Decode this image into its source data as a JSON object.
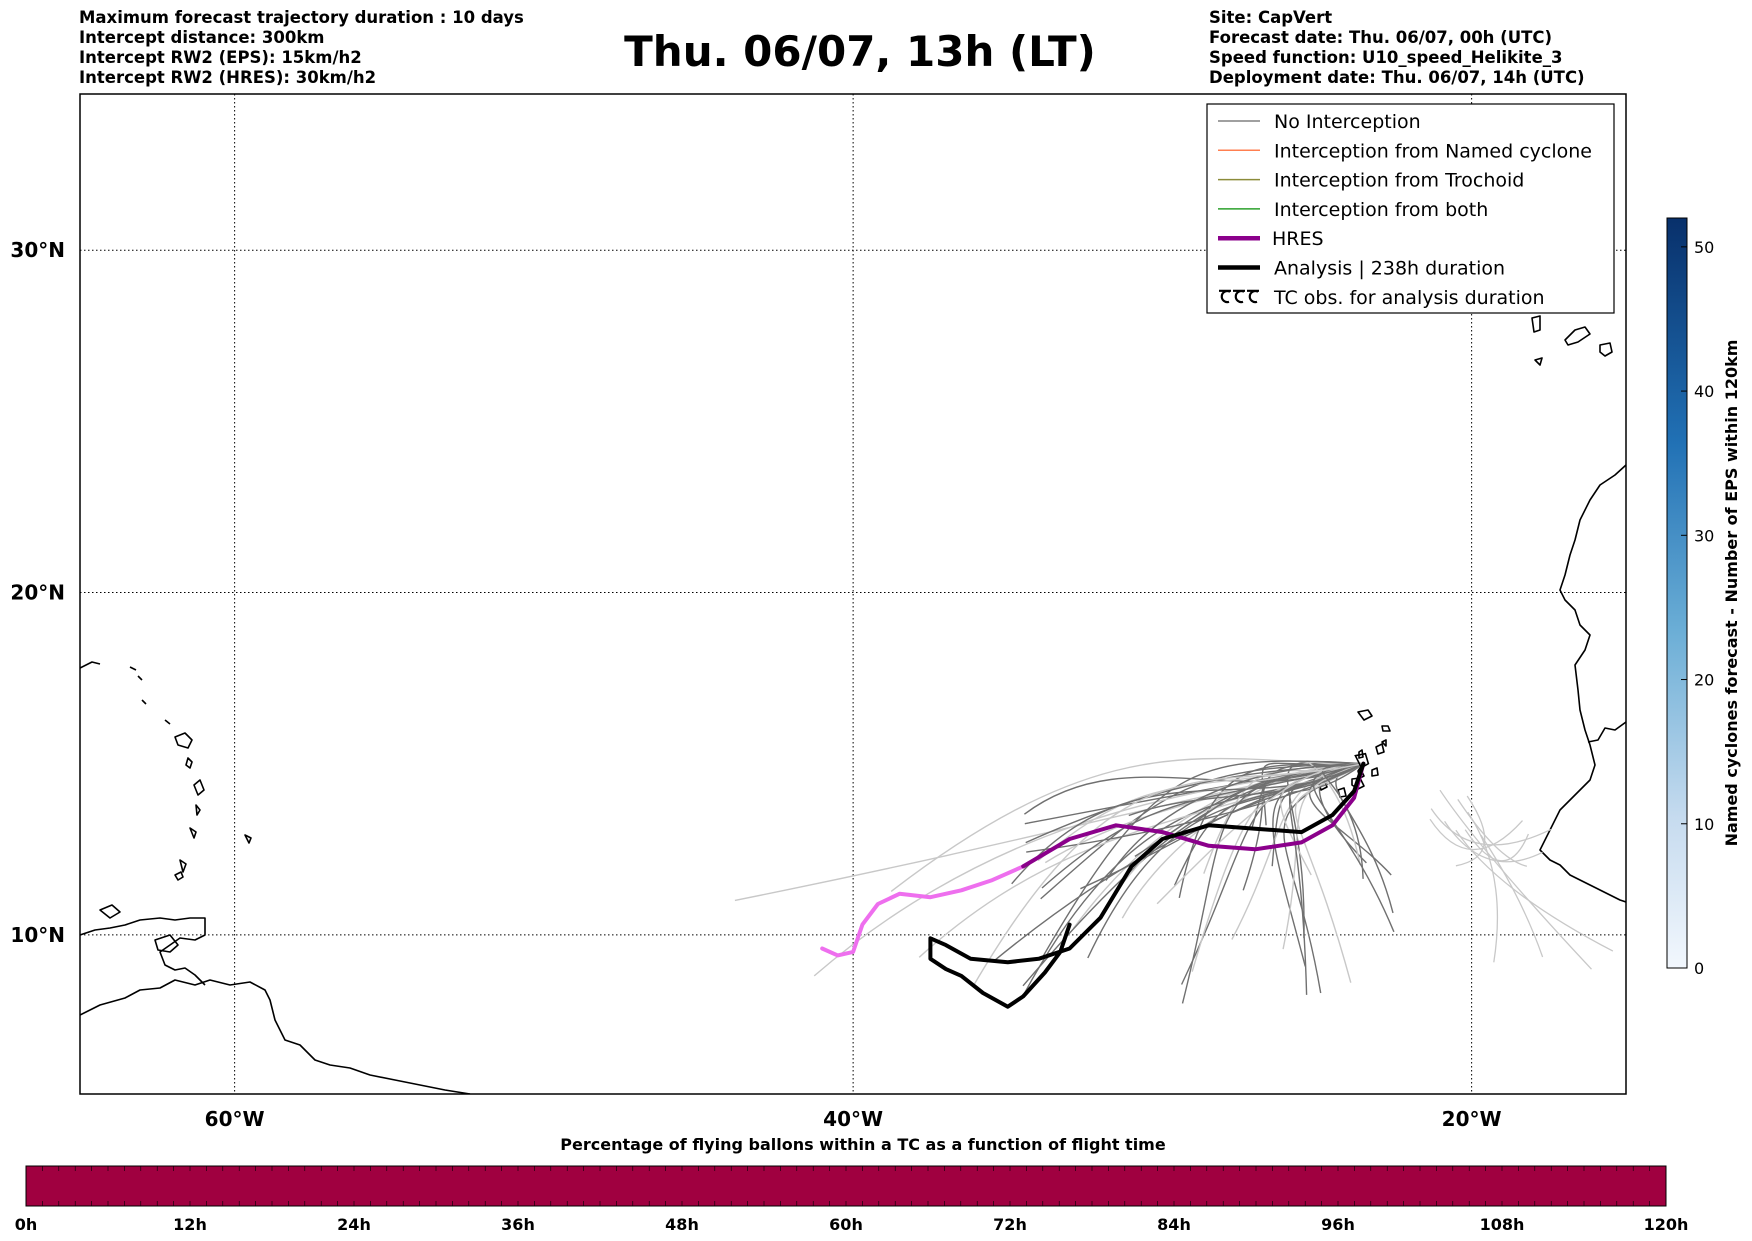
{
  "header": {
    "left_lines": [
      "Maximum forecast trajectory duration : 10 days",
      "Intercept distance: 300km",
      "Intercept RW2 (EPS):  15km/h2",
      "Intercept RW2 (HRES): 30km/h2"
    ],
    "title": "Thu. 06/07, 13h (LT)",
    "right_lines": [
      "Site: CapVert",
      "Forecast date: Thu. 06/07, 00h (UTC)",
      "Speed function: U10_speed_Helikite_3",
      "Deployment date: Thu. 06/07, 14h (UTC)"
    ]
  },
  "map": {
    "lon_ticks": [
      {
        "value": -60,
        "label": "60°W"
      },
      {
        "value": -40,
        "label": "40°W"
      },
      {
        "value": -20,
        "label": "20°W"
      }
    ],
    "lat_ticks": [
      {
        "value": 30,
        "label": "30°N"
      },
      {
        "value": 20,
        "label": "20°N"
      },
      {
        "value": 10,
        "label": "10°N"
      }
    ],
    "launch_site": {
      "lon": -23.5,
      "lat": 15.0
    },
    "hres_track": [
      [
        -41.0,
        9.6
      ],
      [
        -40.5,
        9.4
      ],
      [
        -40.0,
        9.5
      ],
      [
        -39.7,
        10.3
      ],
      [
        -39.2,
        10.9
      ],
      [
        -38.5,
        11.2
      ],
      [
        -37.5,
        11.1
      ],
      [
        -36.5,
        11.3
      ],
      [
        -35.5,
        11.6
      ],
      [
        -34.5,
        12.0
      ],
      [
        -33.0,
        12.8
      ],
      [
        -31.5,
        13.2
      ],
      [
        -30.0,
        13.0
      ],
      [
        -28.5,
        12.6
      ],
      [
        -27.0,
        12.5
      ],
      [
        -25.5,
        12.7
      ],
      [
        -24.5,
        13.2
      ],
      [
        -23.8,
        14.0
      ],
      [
        -23.5,
        15.0
      ]
    ],
    "analysis_track": [
      [
        -33.0,
        10.3
      ],
      [
        -33.3,
        9.5
      ],
      [
        -33.8,
        8.9
      ],
      [
        -34.5,
        8.2
      ],
      [
        -35.0,
        7.9
      ],
      [
        -35.8,
        8.3
      ],
      [
        -36.5,
        8.8
      ],
      [
        -37.0,
        9.0
      ],
      [
        -37.5,
        9.3
      ],
      [
        -37.5,
        9.9
      ],
      [
        -37.0,
        9.7
      ],
      [
        -36.2,
        9.3
      ],
      [
        -35.0,
        9.2
      ],
      [
        -34.0,
        9.3
      ],
      [
        -33.0,
        9.6
      ],
      [
        -32.0,
        10.5
      ],
      [
        -31.0,
        12.0
      ],
      [
        -30.0,
        12.8
      ],
      [
        -28.5,
        13.2
      ],
      [
        -27.0,
        13.1
      ],
      [
        -25.5,
        13.0
      ],
      [
        -24.5,
        13.5
      ],
      [
        -23.8,
        14.2
      ],
      [
        -23.5,
        15.0
      ]
    ],
    "tc_obs_visible": false
  },
  "legend": {
    "items": [
      {
        "label": "No Interception",
        "color": "#808080",
        "style": "line-thin"
      },
      {
        "label": "Interception from Named cyclone",
        "color": "#ff7f50",
        "style": "line-thin"
      },
      {
        "label": "Interception from Trochoid",
        "color": "#8b8b3a",
        "style": "line-thin"
      },
      {
        "label": "Interception from both",
        "color": "#2ca02c",
        "style": "line-thin"
      },
      {
        "label": "HRES",
        "color": "#8b008b",
        "style": "line-thick"
      },
      {
        "label": "Analysis | 238h duration",
        "color": "#000000",
        "style": "line-thick"
      },
      {
        "label": "TC obs. for analysis duration",
        "color": "#000000",
        "style": "cyclone-symbols"
      }
    ]
  },
  "colorbar_right": {
    "label": "Named cyclones forecast - Number of EPS within 120km",
    "ticks": [
      "0",
      "10",
      "20",
      "30",
      "40",
      "50"
    ],
    "min": 0,
    "max": 52,
    "color_low": "#deebf7",
    "color_high": "#08306b"
  },
  "colorbar_bottom": {
    "title": "Percentage of flying ballons within a TC as a function of flight time",
    "ticks": [
      "0h",
      "12h",
      "24h",
      "36h",
      "48h",
      "60h",
      "72h",
      "84h",
      "96h",
      "108h",
      "120h"
    ],
    "fill_color": "#a00040"
  },
  "colors": {
    "hres_early": "#ee6fee",
    "hres_late": "#8b008b",
    "ensemble_near": "#707070",
    "ensemble_far": "#c8c8c8"
  }
}
